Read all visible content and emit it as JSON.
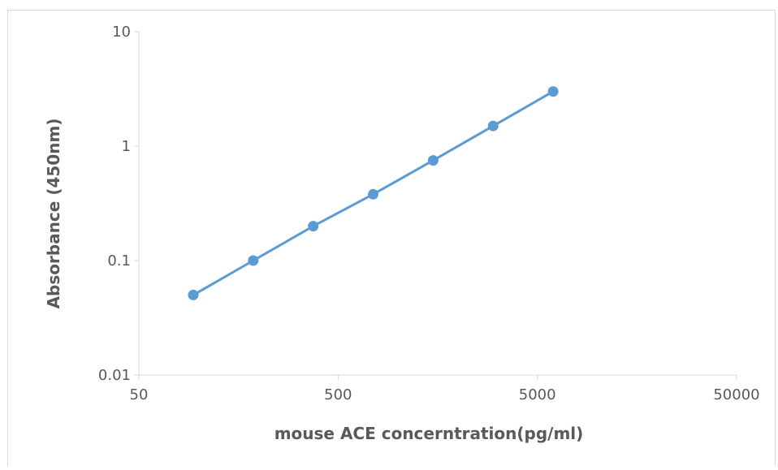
{
  "chart_data": {
    "type": "line",
    "title": "",
    "xlabel": "mouse ACE concerntration(pg/ml)",
    "ylabel": "Absorbance (450nm)",
    "x_scale": "log",
    "y_scale": "log",
    "xlim": [
      50,
      50000
    ],
    "ylim": [
      0.01,
      10
    ],
    "x_ticks": [
      "50",
      "500",
      "5000",
      "50000"
    ],
    "y_ticks": [
      "0.01",
      "0.1",
      "1",
      "10"
    ],
    "grid": false,
    "legend": "none",
    "series": [
      {
        "x": [
          93.75,
          187.5,
          375,
          750,
          1500,
          3000,
          6000
        ],
        "y": [
          0.05,
          0.1,
          0.2,
          0.38,
          0.75,
          1.5,
          3.0
        ],
        "color": "#5b9bd5",
        "markers": true
      }
    ]
  }
}
